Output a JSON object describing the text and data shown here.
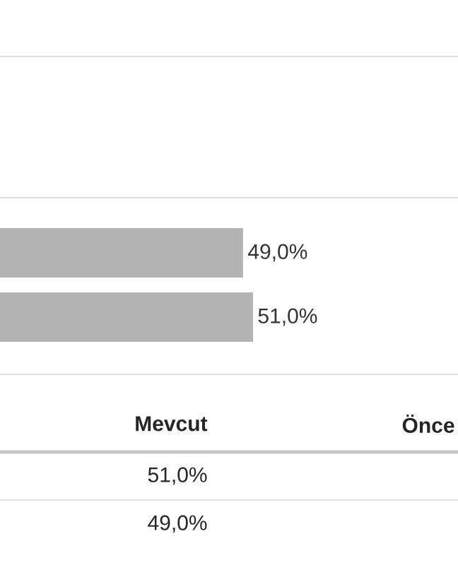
{
  "chart_data": {
    "type": "bar",
    "orientation": "horizontal",
    "categories": [
      null,
      null
    ],
    "values": [
      49,
      51
    ],
    "value_labels": [
      "49,0%",
      "51,0%"
    ],
    "color": "#b3b3b3",
    "tick_labels": false,
    "annotations": [
      "Mevcut",
      "Önce",
      "51,0%",
      "49,0%"
    ]
  }
}
